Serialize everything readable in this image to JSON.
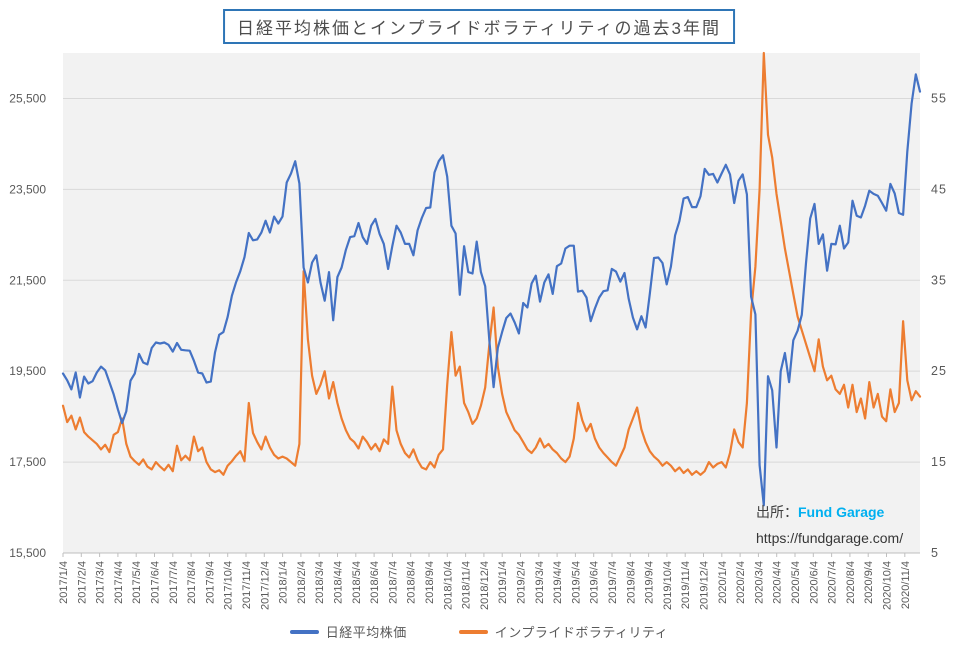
{
  "title": "日経平均株価とインプライドボラティリティの過去3年間",
  "source": {
    "prefix": "出所：",
    "name": "Fund Garage",
    "url": "https://fundgarage.com/"
  },
  "colors": {
    "nikkei_blue": "#4472C4",
    "volatility_orange": "#ED7D31",
    "plot_background": "#F2F2F2",
    "gridline": "#D9D9D9",
    "axis_line": "#BFBFBF",
    "tick_text": "#595959",
    "title_border_blue": "#2E75B6",
    "source_link_cyan": "#00B0F0"
  },
  "chart_data": {
    "type": "line",
    "title": "日経平均株価とインプライドボラティリティの過去3年間",
    "grid": true,
    "legend_position": "bottom",
    "x_tick_labels": [
      "2017/1/4",
      "2017/2/4",
      "2017/3/4",
      "2017/4/4",
      "2017/5/4",
      "2017/6/4",
      "2017/7/4",
      "2017/8/4",
      "2017/9/4",
      "2017/10/4",
      "2017/11/4",
      "2017/12/4",
      "2018/1/4",
      "2018/2/4",
      "2018/3/4",
      "2018/4/4",
      "2018/5/4",
      "2018/6/4",
      "2018/7/4",
      "2018/8/4",
      "2018/9/4",
      "2018/10/4",
      "2018/11/4",
      "2018/12/4",
      "2019/1/4",
      "2019/2/4",
      "2019/3/4",
      "2019/4/4",
      "2019/5/4",
      "2019/6/4",
      "2019/7/4",
      "2019/8/4",
      "2019/9/4",
      "2019/10/4",
      "2019/11/4",
      "2019/12/4",
      "2020/1/4",
      "2020/2/4",
      "2020/3/4",
      "2020/4/4",
      "2020/5/4",
      "2020/6/4",
      "2020/7/4",
      "2020/8/4",
      "2020/9/4",
      "2020/10/4",
      "2020/11/4"
    ],
    "left_axis": {
      "min": 15500,
      "max": 26500,
      "ticks": [
        {
          "v": 15500,
          "label": "15,500"
        },
        {
          "v": 17500,
          "label": "17,500"
        },
        {
          "v": 19500,
          "label": "19,500"
        },
        {
          "v": 21500,
          "label": "21,500"
        },
        {
          "v": 23500,
          "label": "23,500"
        },
        {
          "v": 25500,
          "label": "25,500"
        }
      ]
    },
    "right_axis": {
      "min": 5,
      "max": 60,
      "ticks": [
        {
          "v": 5,
          "label": "5"
        },
        {
          "v": 15,
          "label": "15"
        },
        {
          "v": 25,
          "label": "25"
        },
        {
          "v": 35,
          "label": "35"
        },
        {
          "v": 45,
          "label": "45"
        },
        {
          "v": 55,
          "label": "55"
        }
      ]
    },
    "series": [
      {
        "name": "日経平均株価",
        "color": "#4472C4",
        "axis": "left",
        "values": [
          19450,
          19300,
          19100,
          19470,
          18920,
          19380,
          19230,
          19280,
          19470,
          19600,
          19520,
          19260,
          18990,
          18660,
          18360,
          18620,
          19290,
          19450,
          19880,
          19690,
          19650,
          20010,
          20130,
          20110,
          20130,
          20080,
          19930,
          20120,
          19970,
          19960,
          19950,
          19730,
          19470,
          19450,
          19250,
          19270,
          19910,
          20300,
          20360,
          20690,
          21160,
          21460,
          21700,
          22010,
          22540,
          22380,
          22400,
          22550,
          22810,
          22550,
          22900,
          22750,
          22900,
          23650,
          23850,
          24120,
          23630,
          21780,
          21450,
          21890,
          22050,
          21450,
          21050,
          21680,
          20620,
          21570,
          21780,
          22170,
          22450,
          22470,
          22760,
          22450,
          22300,
          22700,
          22850,
          22520,
          22300,
          21750,
          22250,
          22700,
          22550,
          22300,
          22300,
          22050,
          22600,
          22870,
          23090,
          23100,
          23870,
          24120,
          24250,
          23780,
          22700,
          22530,
          21180,
          22250,
          21680,
          21650,
          22350,
          21680,
          21370,
          20160,
          19150,
          20010,
          20360,
          20670,
          20770,
          20570,
          20330,
          21000,
          20900,
          21430,
          21600,
          21030,
          21450,
          21630,
          21200,
          21810,
          21870,
          22200,
          22260,
          22260,
          21250,
          21270,
          21120,
          20600,
          20880,
          21120,
          21260,
          21280,
          21750,
          21690,
          21470,
          21660,
          21090,
          20680,
          20420,
          20710,
          20460,
          21200,
          21990,
          22000,
          21880,
          21410,
          21800,
          22490,
          22800,
          23300,
          23330,
          23110,
          23110,
          23350,
          23950,
          23820,
          23840,
          23650,
          23850,
          24040,
          23830,
          23200,
          23690,
          23830,
          23390,
          21140,
          20750,
          17430,
          16550,
          19390,
          19080,
          17820,
          19500,
          19900,
          19260,
          20180,
          20390,
          20740,
          21880,
          22860,
          23180,
          22300,
          22510,
          21710,
          22300,
          22290,
          22700,
          22200,
          22330,
          23250,
          22920,
          22880,
          23140,
          23470,
          23400,
          23360,
          23200,
          23030,
          23620,
          23410,
          22980,
          22940,
          24330,
          25390,
          26030,
          25650
        ]
      },
      {
        "name": "インプライドボラティリティ",
        "color": "#ED7D31",
        "axis": "right",
        "values": [
          21.2,
          19.4,
          20.1,
          18.6,
          19.9,
          18.3,
          17.8,
          17.4,
          17.0,
          16.4,
          16.9,
          16.1,
          18.0,
          18.3,
          19.8,
          17.0,
          15.6,
          15.1,
          14.7,
          15.3,
          14.5,
          14.2,
          15.0,
          14.5,
          14.1,
          14.7,
          14.0,
          16.8,
          15.2,
          15.7,
          15.2,
          17.8,
          16.2,
          16.6,
          15.0,
          14.2,
          13.9,
          14.1,
          13.6,
          14.6,
          15.1,
          15.7,
          16.2,
          15.1,
          21.5,
          18.2,
          17.2,
          16.4,
          17.8,
          16.6,
          15.8,
          15.4,
          15.6,
          15.4,
          15.0,
          14.6,
          17.0,
          36.0,
          28.5,
          24.5,
          22.5,
          23.5,
          25.0,
          22.0,
          23.8,
          21.5,
          19.8,
          18.5,
          17.6,
          17.2,
          16.5,
          17.8,
          17.2,
          16.4,
          17.0,
          16.2,
          17.5,
          17.0,
          23.3,
          18.5,
          17.0,
          16.0,
          15.5,
          16.4,
          15.2,
          14.4,
          14.2,
          15.0,
          14.4,
          15.8,
          16.4,
          23.5,
          29.3,
          24.5,
          25.5,
          21.5,
          20.5,
          19.2,
          19.8,
          21.2,
          23.2,
          28.0,
          32.0,
          25.5,
          22.5,
          20.5,
          19.5,
          18.5,
          18.0,
          17.2,
          16.4,
          16.0,
          16.6,
          17.6,
          16.6,
          17.0,
          16.4,
          16.0,
          15.4,
          15.0,
          15.6,
          17.6,
          21.5,
          19.6,
          18.4,
          19.2,
          17.6,
          16.6,
          16.0,
          15.5,
          15.0,
          14.6,
          15.6,
          16.6,
          18.6,
          19.8,
          21.0,
          18.6,
          17.2,
          16.2,
          15.6,
          15.2,
          14.6,
          15.0,
          14.6,
          14.0,
          14.4,
          13.8,
          14.2,
          13.6,
          14.0,
          13.6,
          14.0,
          15.0,
          14.4,
          14.8,
          15.0,
          14.4,
          16.0,
          18.6,
          17.2,
          16.6,
          21.5,
          31.5,
          36.5,
          45.0,
          60.0,
          51.0,
          48.5,
          44.5,
          41.5,
          38.5,
          36.0,
          33.5,
          31.0,
          29.5,
          28.0,
          26.5,
          25.0,
          28.5,
          25.5,
          24.0,
          24.5,
          23.0,
          22.5,
          23.5,
          21.0,
          23.5,
          20.5,
          22.0,
          19.8,
          23.8,
          21.0,
          22.5,
          20.0,
          19.5,
          23.0,
          20.5,
          21.5,
          30.5,
          24.0,
          21.8,
          22.8,
          22.2
        ]
      }
    ]
  }
}
